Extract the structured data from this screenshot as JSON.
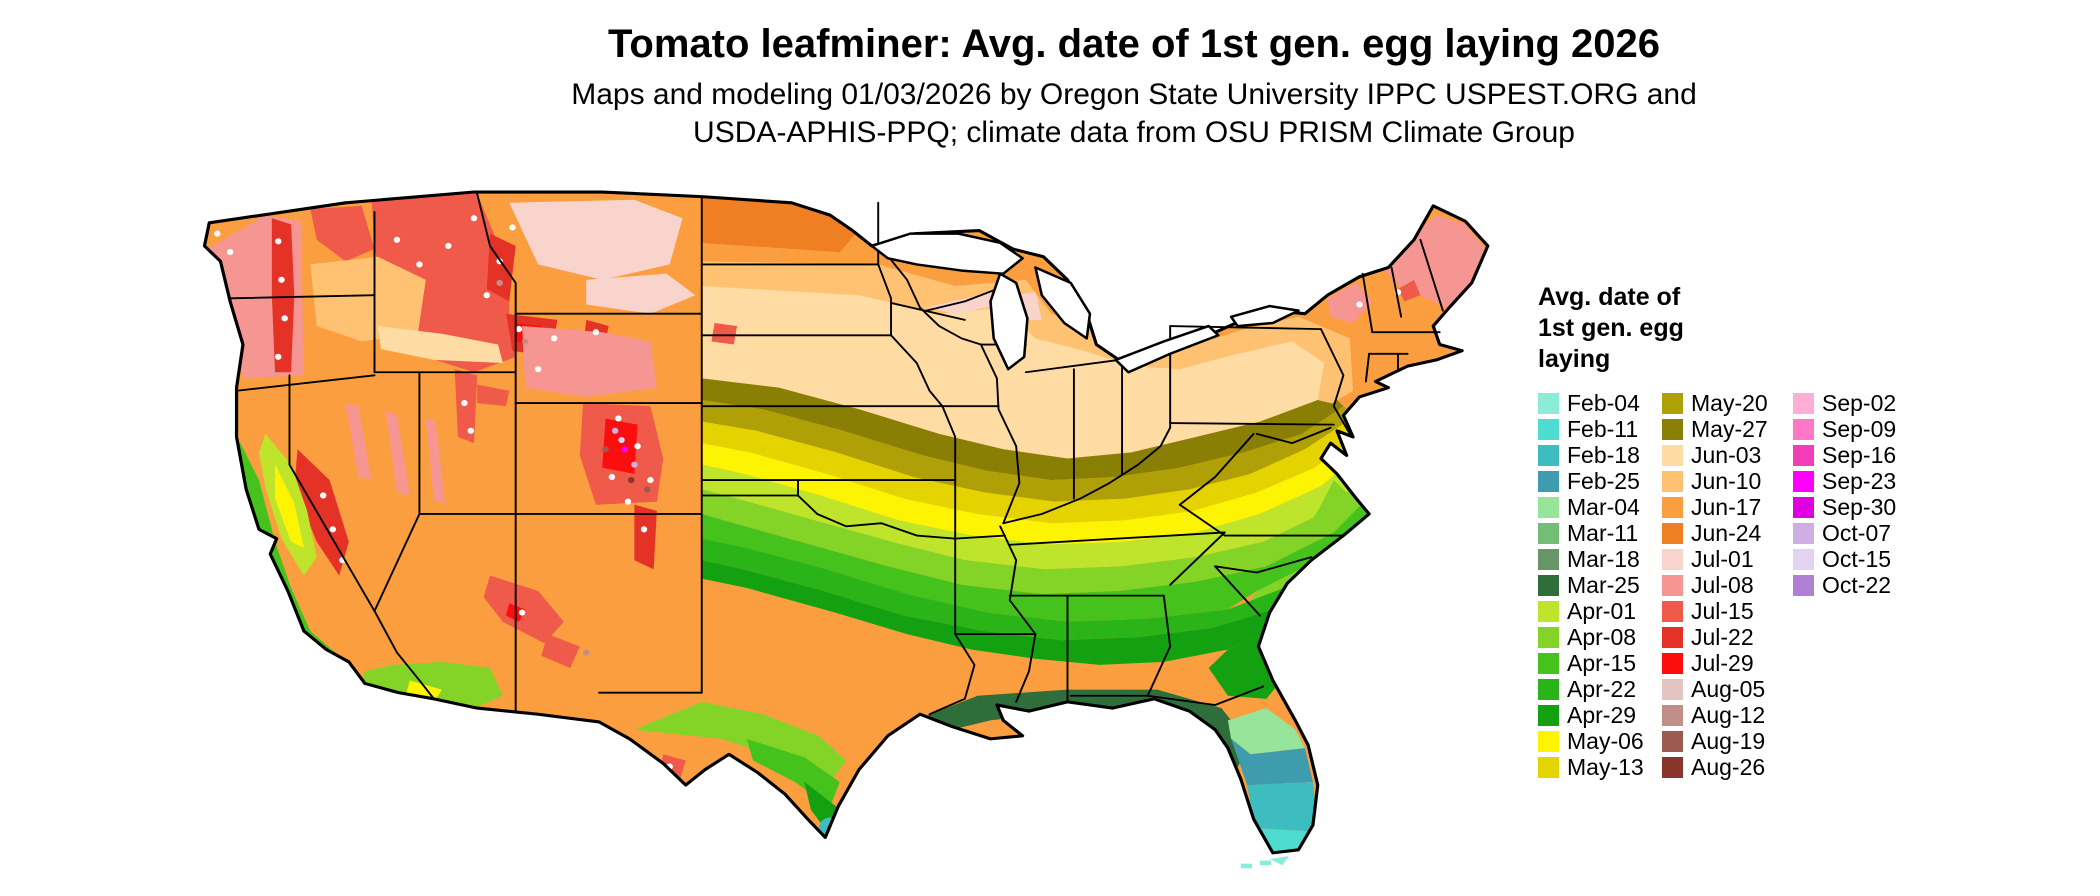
{
  "header": {
    "title": "Tomato leafminer: Avg. date of 1st gen. egg laying 2026",
    "subtitle_line1": "Maps and modeling 01/03/2026 by Oregon State University IPPC USPEST.ORG and",
    "subtitle_line2": "USDA-APHIS-PPQ; climate data from OSU PRISM Climate Group"
  },
  "legend": {
    "title_lines": [
      "Avg. date of",
      "1st gen. egg",
      "laying"
    ],
    "columns": [
      {
        "items": [
          {
            "label": "Feb-04",
            "color": "#8BEDD9"
          },
          {
            "label": "Feb-11",
            "color": "#4FDCD0"
          },
          {
            "label": "Feb-18",
            "color": "#3EBDC0"
          },
          {
            "label": "Feb-25",
            "color": "#3F9BAE"
          },
          {
            "label": "Mar-04",
            "color": "#97E59A"
          },
          {
            "label": "Mar-11",
            "color": "#74BD76"
          },
          {
            "label": "Mar-18",
            "color": "#689668"
          },
          {
            "label": "Mar-25",
            "color": "#2F6D3B"
          },
          {
            "label": "Apr-01",
            "color": "#BEE52C"
          },
          {
            "label": "Apr-08",
            "color": "#84D428"
          },
          {
            "label": "Apr-15",
            "color": "#46C21D"
          },
          {
            "label": "Apr-22",
            "color": "#2AB418"
          },
          {
            "label": "Apr-29",
            "color": "#13A112"
          },
          {
            "label": "May-06",
            "color": "#FDF403"
          },
          {
            "label": "May-13",
            "color": "#E5D300"
          }
        ]
      },
      {
        "items": [
          {
            "label": "May-20",
            "color": "#AFA008"
          },
          {
            "label": "May-27",
            "color": "#8A7F05"
          },
          {
            "label": "Jun-03",
            "color": "#FFDCA4"
          },
          {
            "label": "Jun-10",
            "color": "#FFC272"
          },
          {
            "label": "Jun-17",
            "color": "#FB9E3F"
          },
          {
            "label": "Jun-24",
            "color": "#F07E22"
          },
          {
            "label": "Jul-01",
            "color": "#F8D4CC"
          },
          {
            "label": "Jul-08",
            "color": "#F59693"
          },
          {
            "label": "Jul-15",
            "color": "#EF5A4B"
          },
          {
            "label": "Jul-22",
            "color": "#E53226"
          },
          {
            "label": "Jul-29",
            "color": "#FA0E0E"
          },
          {
            "label": "Aug-05",
            "color": "#E2C5C0"
          },
          {
            "label": "Aug-12",
            "color": "#C18E89"
          },
          {
            "label": "Aug-19",
            "color": "#9C5A50"
          },
          {
            "label": "Aug-26",
            "color": "#8A352C"
          }
        ]
      },
      {
        "items": [
          {
            "label": "Sep-02",
            "color": "#FFAFD7"
          },
          {
            "label": "Sep-09",
            "color": "#FF78C8"
          },
          {
            "label": "Sep-16",
            "color": "#F23CB8"
          },
          {
            "label": "Sep-23",
            "color": "#FF00FF"
          },
          {
            "label": "Sep-30",
            "color": "#DE00DE"
          },
          {
            "label": "Oct-07",
            "color": "#CFAEE4"
          },
          {
            "label": "Oct-15",
            "color": "#E4D3F0"
          },
          {
            "label": "Oct-22",
            "color": "#AF80D6"
          }
        ]
      }
    ]
  }
}
